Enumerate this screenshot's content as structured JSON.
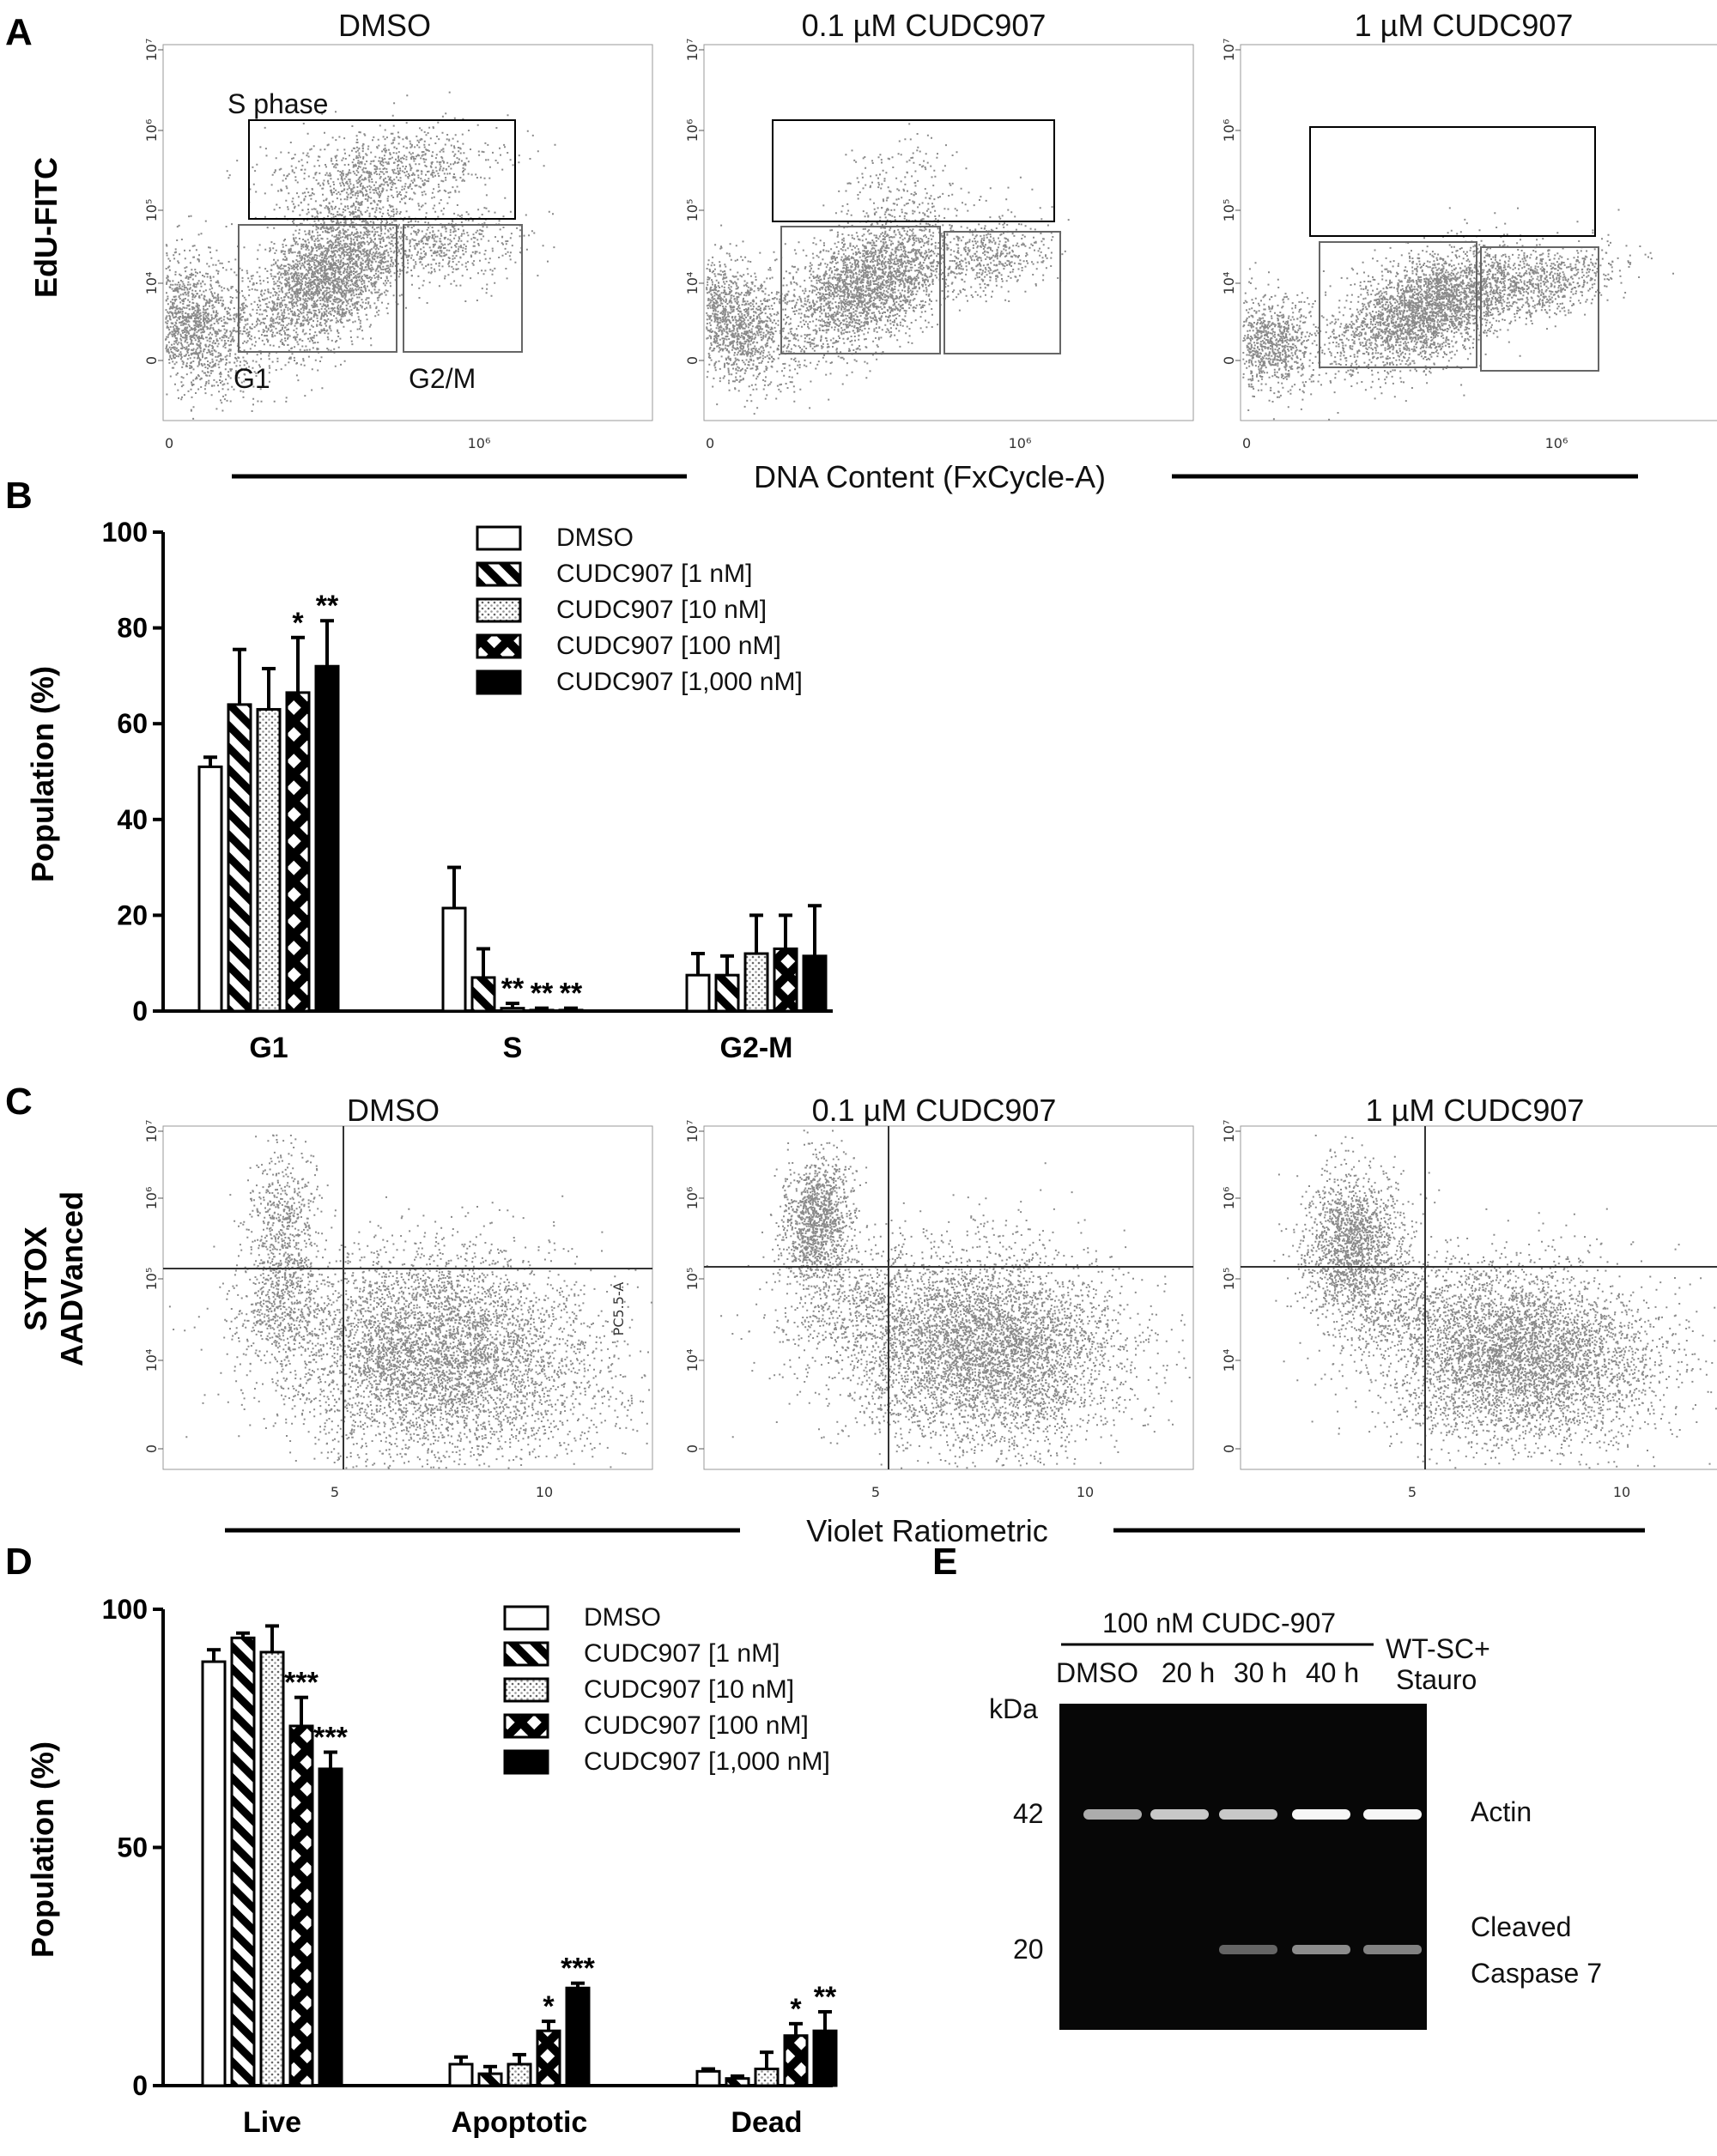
{
  "panel_labels": [
    "A",
    "B",
    "C",
    "D",
    "E"
  ],
  "panelA": {
    "titles": [
      "DMSO",
      "0.1 µM CUDC907",
      "1 µM CUDC907"
    ],
    "ylabel": "EdU-FITC",
    "xlabel": "DNA Content (FxCycle-A)",
    "yticks": [
      "0",
      "10⁴",
      "10⁵",
      "10⁶",
      "10⁷"
    ],
    "xticks": [
      "0",
      "10⁶"
    ],
    "gates": {
      "s": "S phase",
      "g1": "G1",
      "g2": "G2/M"
    }
  },
  "panelC": {
    "titles": [
      "DMSO",
      "0.1 µM CUDC907",
      "1 µM CUDC907"
    ],
    "ylabel_line1": "SYTOX",
    "ylabel_line2": "AADVanced",
    "small_axis": "PC5.5-A",
    "xlabel": "Violet Ratiometric",
    "yticks": [
      "0",
      "10⁴",
      "10⁵",
      "10⁶",
      "10⁷"
    ],
    "xticks": [
      "5",
      "10"
    ]
  },
  "legend": [
    "DMSO",
    "CUDC907 [1 nM]",
    "CUDC907 [10 nM]",
    "CUDC907 [100 nM]",
    "CUDC907 [1,000 nM]"
  ],
  "chart_data": [
    {
      "type": "bar",
      "panel": "B",
      "ylabel": "Population (%)",
      "ylim": [
        0,
        100
      ],
      "yticks": [
        "0",
        "20",
        "40",
        "60",
        "80",
        "100"
      ],
      "categories": [
        "G1",
        "S",
        "G2-M"
      ],
      "series": [
        {
          "name": "DMSO",
          "values": [
            51,
            21.5,
            7.5
          ],
          "errors": [
            2,
            8.5,
            4.5
          ],
          "stars": [
            "",
            "",
            ""
          ]
        },
        {
          "name": "CUDC907 [1 nM]",
          "values": [
            64,
            7,
            7.5
          ],
          "errors": [
            11.5,
            6,
            4
          ],
          "stars": [
            "",
            "",
            ""
          ]
        },
        {
          "name": "CUDC907 [10 nM]",
          "values": [
            63,
            0.6,
            12
          ],
          "errors": [
            8.5,
            1,
            8
          ],
          "stars": [
            "",
            "**",
            ""
          ]
        },
        {
          "name": "CUDC907 [100 nM]",
          "values": [
            66.5,
            0.2,
            13
          ],
          "errors": [
            11.5,
            0.4,
            7
          ],
          "stars": [
            "*",
            "**",
            ""
          ]
        },
        {
          "name": "CUDC907 [1,000 nM]",
          "values": [
            72,
            0.2,
            11.5
          ],
          "errors": [
            9.5,
            0.4,
            10.5
          ],
          "stars": [
            "**",
            "**",
            ""
          ]
        }
      ]
    },
    {
      "type": "bar",
      "panel": "D",
      "ylabel": "Population (%)",
      "ylim": [
        0,
        100
      ],
      "yticks": [
        "0",
        "50",
        "100"
      ],
      "categories": [
        "Live",
        "Apoptotic",
        "Dead"
      ],
      "series": [
        {
          "name": "DMSO",
          "values": [
            89,
            4.5,
            3
          ],
          "errors": [
            2.5,
            1.5,
            0.5
          ],
          "stars": [
            "",
            "",
            ""
          ]
        },
        {
          "name": "CUDC907 [1 nM]",
          "values": [
            94,
            2.5,
            1.5
          ],
          "errors": [
            1,
            1.5,
            0.5
          ],
          "stars": [
            "",
            "",
            ""
          ]
        },
        {
          "name": "CUDC907 [10 nM]",
          "values": [
            91,
            4.5,
            3.5
          ],
          "errors": [
            5.5,
            2,
            3.5
          ],
          "stars": [
            "",
            "",
            ""
          ]
        },
        {
          "name": "CUDC907 [100 nM]",
          "values": [
            75.5,
            11.5,
            10.5
          ],
          "errors": [
            6,
            2,
            2.5
          ],
          "stars": [
            "***",
            "*",
            "*"
          ]
        },
        {
          "name": "CUDC907 [1,000 nM]",
          "values": [
            66.5,
            20.5,
            11.5
          ],
          "errors": [
            3.5,
            1,
            4
          ],
          "stars": [
            "***",
            "***",
            "**"
          ]
        }
      ]
    }
  ],
  "panelE": {
    "treatment": "100 nM CUDC-907",
    "lanes": [
      "DMSO",
      "20 h",
      "30 h",
      "40 h"
    ],
    "lane5_line1": "WT-SC+",
    "lane5_line2": "Stauro",
    "kda_label": "kDa",
    "markers": [
      "42",
      "20"
    ],
    "band_actin": "Actin",
    "band_casp_line1": "Cleaved",
    "band_casp_line2": "Caspase 7",
    "actin_intensity": [
      0.55,
      0.7,
      0.7,
      0.95,
      0.95
    ],
    "caspase_intensity": [
      0,
      0,
      0.3,
      0.5,
      0.45
    ]
  }
}
